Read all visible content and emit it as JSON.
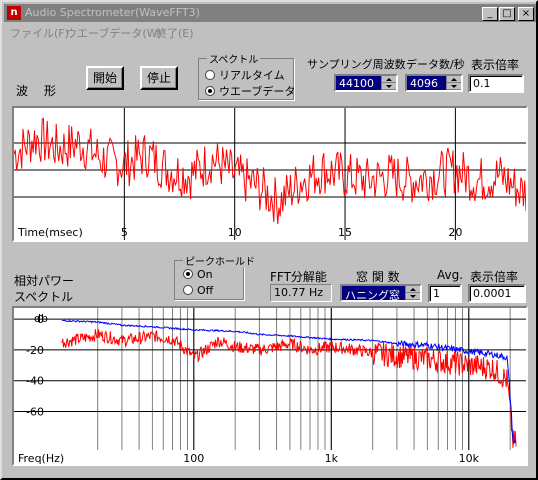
{
  "window": {
    "title": "Audio Spectrometer(WaveFFT3)",
    "icon_letter": "n",
    "controls": {
      "minimize": "_",
      "maximize": "□",
      "close": "×"
    }
  },
  "menu": [
    "ファイル(F)",
    "ウエーブデータ(W)",
    "終了(E)"
  ],
  "waveform": {
    "label": "波　形",
    "start_button": "開始",
    "stop_button": "停止",
    "spectrum_group": {
      "title": "スペクトル",
      "options": [
        {
          "label": "リアルタイム",
          "selected": false
        },
        {
          "label": "ウエーブデータ",
          "selected": true
        }
      ]
    },
    "sampling_rate": {
      "label": "サンプリング周波数",
      "value": "44100"
    },
    "data_rate": {
      "label": "データ数/秒",
      "value": "4096"
    },
    "display_scale": {
      "label": "表示倍率",
      "value": "0.1"
    },
    "xlabel": "Time(msec)",
    "x_ticks": [
      "5",
      "10",
      "15",
      "20"
    ]
  },
  "spectrum": {
    "label_line1": "相対パワー",
    "label_line2": "スペクトル",
    "peak_hold": {
      "title": "ピークホールド",
      "options": [
        {
          "label": "On",
          "selected": true
        },
        {
          "label": "Off",
          "selected": false
        }
      ]
    },
    "fft_resolution": {
      "label": "FFT分解能",
      "value": "10.77 Hz"
    },
    "window_function": {
      "label": "窓 関 数",
      "value": "ハニング窓"
    },
    "averaging": {
      "label": "Avg.",
      "value": "1"
    },
    "display_scale": {
      "label": "表示倍率",
      "value": "0.0001"
    },
    "y_unit": "db",
    "y_ticks": [
      "0",
      "-20",
      "-40",
      "-60"
    ],
    "xlabel": "Freq(Hz)",
    "x_ticks": [
      "100",
      "1k",
      "10k"
    ]
  },
  "chart_data": [
    {
      "type": "line",
      "xlabel": "Time(msec)",
      "x_tick_labels": [
        "5",
        "10",
        "15",
        "20"
      ],
      "xlim": [
        0,
        23.2
      ],
      "ylim": [
        -1,
        1
      ],
      "grid": true,
      "series": [
        {
          "color": "#ff0000",
          "x": [
            0,
            1,
            2,
            3,
            4,
            5,
            6,
            7,
            8,
            9,
            10,
            11,
            12,
            13,
            14,
            15,
            16,
            17,
            18,
            19,
            20,
            21,
            22,
            23
          ],
          "values": [
            0.3,
            0.6,
            0.4,
            0.5,
            0.2,
            0.1,
            0.3,
            0.0,
            -0.1,
            0.2,
            -0.1,
            -0.3,
            -0.6,
            -0.2,
            0.0,
            -0.1,
            -0.2,
            -0.1,
            -0.2,
            -0.1,
            0.0,
            -0.2,
            -0.1,
            -0.4
          ]
        }
      ]
    },
    {
      "type": "line",
      "xlabel": "Freq(Hz)",
      "ylabel": "db",
      "x_scale": "log",
      "x_tick_labels": [
        "100",
        "1k",
        "10k"
      ],
      "xlim": [
        11,
        22050
      ],
      "ylim": [
        -85,
        2
      ],
      "grid": true,
      "series": [
        {
          "color": "#0000ff",
          "x": [
            11,
            20,
            30,
            50,
            70,
            100,
            200,
            300,
            500,
            700,
            1000,
            2000,
            3000,
            5000,
            7000,
            10000,
            15000,
            19000,
            20000,
            21000,
            22050
          ],
          "values": [
            -1,
            -2,
            -4,
            -5,
            -6,
            -7,
            -8,
            -10,
            -11,
            -12,
            -13,
            -14,
            -16,
            -17,
            -19,
            -21,
            -23,
            -25,
            -50,
            -80,
            -80
          ]
        },
        {
          "color": "#ff0000",
          "x": [
            11,
            20,
            30,
            50,
            70,
            100,
            150,
            200,
            300,
            500,
            700,
            1000,
            2000,
            3000,
            5000,
            7000,
            10000,
            15000,
            19000,
            20000,
            21000,
            22050
          ],
          "values": [
            -15,
            -10,
            -14,
            -11,
            -13,
            -25,
            -14,
            -18,
            -20,
            -16,
            -20,
            -18,
            -22,
            -24,
            -26,
            -28,
            -30,
            -32,
            -40,
            -60,
            -80,
            -80
          ]
        }
      ]
    }
  ]
}
